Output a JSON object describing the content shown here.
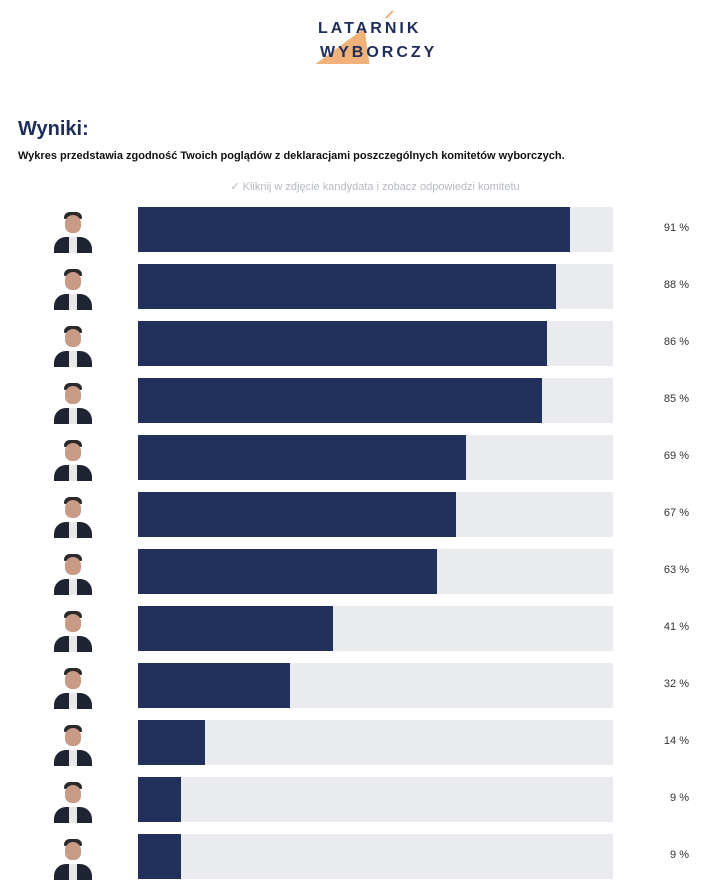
{
  "logo": {
    "line1": "LATARNIK",
    "line2": "WYBORCZY"
  },
  "results": {
    "title": "Wyniki:",
    "subtitle": "Wykres przedstawia zgodność Twoich poglądów z deklaracjami poszczególnych komitetów wyborczych.",
    "hint": "✓ Kliknij w zdjęcie kandydata i zobacz odpowiedzi komitetu"
  },
  "colors": {
    "bar_fill": "#22305c",
    "bar_track": "#e9ebee",
    "accent": "#f0b27a"
  },
  "rows": [
    {
      "value": 91,
      "label": "91 %"
    },
    {
      "value": 88,
      "label": "88 %"
    },
    {
      "value": 86,
      "label": "86 %"
    },
    {
      "value": 85,
      "label": "85 %"
    },
    {
      "value": 69,
      "label": "69 %"
    },
    {
      "value": 67,
      "label": "67 %"
    },
    {
      "value": 63,
      "label": "63 %"
    },
    {
      "value": 41,
      "label": "41 %"
    },
    {
      "value": 32,
      "label": "32 %"
    },
    {
      "value": 14,
      "label": "14 %"
    },
    {
      "value": 9,
      "label": "9 %"
    },
    {
      "value": 9,
      "label": "9 %"
    }
  ]
}
